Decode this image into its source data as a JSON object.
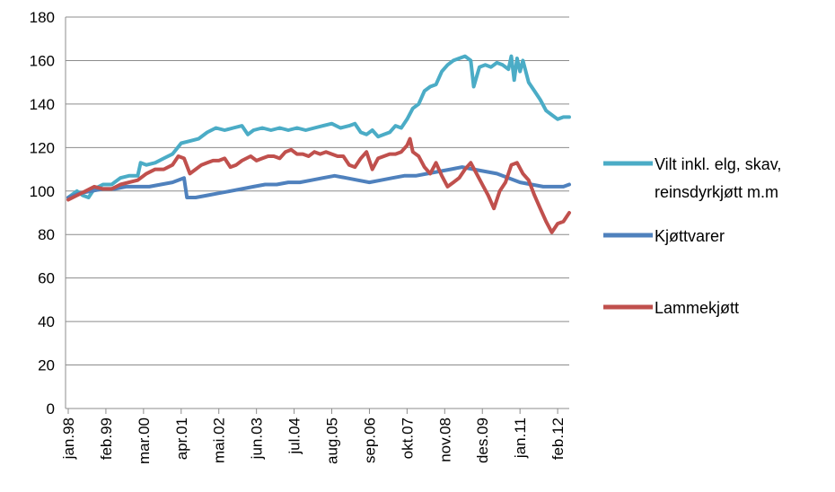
{
  "chart_data": {
    "type": "line",
    "title": "",
    "xlabel": "",
    "ylabel": "",
    "ylim": [
      0,
      180
    ],
    "yticks": [
      0,
      20,
      40,
      60,
      80,
      100,
      120,
      140,
      160,
      180
    ],
    "x_tick_labels": [
      "jan.98",
      "feb.99",
      "mar.00",
      "apr.01",
      "mai.02",
      "jun.03",
      "jul.04",
      "aug.05",
      "sep.06",
      "okt.07",
      "nov.08",
      "des.09",
      "jan.11",
      "feb.12"
    ],
    "x_tick_month_index": [
      0,
      13,
      26,
      39,
      52,
      65,
      78,
      91,
      104,
      117,
      130,
      143,
      156,
      169
    ],
    "x_range_month_index": [
      0,
      173
    ],
    "grid": "horizontal",
    "legend_position": "right",
    "series": [
      {
        "name": "Vilt inkl. elg, skav, reinsdyrkjøtt m.m",
        "legend_lines": [
          "Vilt inkl. elg, skav,",
          "reinsdyrkjøtt m.m"
        ],
        "color": "#4bacc6",
        "points": [
          [
            0,
            97
          ],
          [
            3,
            100
          ],
          [
            5,
            98
          ],
          [
            7,
            97
          ],
          [
            9,
            101
          ],
          [
            12,
            103
          ],
          [
            15,
            103
          ],
          [
            18,
            106
          ],
          [
            21,
            107
          ],
          [
            24,
            107
          ],
          [
            25,
            113
          ],
          [
            27,
            112
          ],
          [
            30,
            113
          ],
          [
            33,
            115
          ],
          [
            36,
            117
          ],
          [
            39,
            122
          ],
          [
            42,
            123
          ],
          [
            45,
            124
          ],
          [
            48,
            127
          ],
          [
            51,
            129
          ],
          [
            54,
            128
          ],
          [
            57,
            129
          ],
          [
            60,
            130
          ],
          [
            62,
            126
          ],
          [
            64,
            128
          ],
          [
            67,
            129
          ],
          [
            70,
            128
          ],
          [
            73,
            129
          ],
          [
            76,
            128
          ],
          [
            79,
            129
          ],
          [
            82,
            128
          ],
          [
            85,
            129
          ],
          [
            88,
            130
          ],
          [
            91,
            131
          ],
          [
            94,
            129
          ],
          [
            97,
            130
          ],
          [
            99,
            131
          ],
          [
            101,
            127
          ],
          [
            103,
            126
          ],
          [
            105,
            128
          ],
          [
            107,
            125
          ],
          [
            109,
            126
          ],
          [
            111,
            127
          ],
          [
            113,
            130
          ],
          [
            115,
            129
          ],
          [
            117,
            133
          ],
          [
            119,
            138
          ],
          [
            121,
            140
          ],
          [
            123,
            146
          ],
          [
            125,
            148
          ],
          [
            127,
            149
          ],
          [
            129,
            155
          ],
          [
            131,
            158
          ],
          [
            133,
            160
          ],
          [
            135,
            161
          ],
          [
            137,
            162
          ],
          [
            139,
            160
          ],
          [
            140,
            148
          ],
          [
            142,
            157
          ],
          [
            144,
            158
          ],
          [
            146,
            157
          ],
          [
            148,
            159
          ],
          [
            150,
            158
          ],
          [
            152,
            156
          ],
          [
            153,
            162
          ],
          [
            154,
            151
          ],
          [
            155,
            161
          ],
          [
            156,
            155
          ],
          [
            157,
            160
          ],
          [
            159,
            150
          ],
          [
            161,
            146
          ],
          [
            163,
            142
          ],
          [
            165,
            137
          ],
          [
            167,
            135
          ],
          [
            169,
            133
          ],
          [
            171,
            134
          ],
          [
            173,
            134
          ]
        ]
      },
      {
        "name": "Kjøttvarer",
        "legend_lines": [
          "Kjøttvarer"
        ],
        "color": "#4f81bd",
        "points": [
          [
            0,
            97
          ],
          [
            4,
            99
          ],
          [
            8,
            100
          ],
          [
            12,
            101
          ],
          [
            16,
            101
          ],
          [
            20,
            102
          ],
          [
            24,
            102
          ],
          [
            28,
            102
          ],
          [
            32,
            103
          ],
          [
            36,
            104
          ],
          [
            40,
            106
          ],
          [
            41,
            97
          ],
          [
            44,
            97
          ],
          [
            48,
            98
          ],
          [
            52,
            99
          ],
          [
            56,
            100
          ],
          [
            60,
            101
          ],
          [
            64,
            102
          ],
          [
            68,
            103
          ],
          [
            72,
            103
          ],
          [
            76,
            104
          ],
          [
            80,
            104
          ],
          [
            84,
            105
          ],
          [
            88,
            106
          ],
          [
            92,
            107
          ],
          [
            96,
            106
          ],
          [
            100,
            105
          ],
          [
            104,
            104
          ],
          [
            108,
            105
          ],
          [
            112,
            106
          ],
          [
            116,
            107
          ],
          [
            120,
            107
          ],
          [
            124,
            108
          ],
          [
            128,
            109
          ],
          [
            132,
            110
          ],
          [
            136,
            111
          ],
          [
            140,
            110
          ],
          [
            144,
            109
          ],
          [
            148,
            108
          ],
          [
            152,
            106
          ],
          [
            156,
            104
          ],
          [
            160,
            103
          ],
          [
            164,
            102
          ],
          [
            168,
            102
          ],
          [
            171,
            102
          ],
          [
            173,
            103
          ]
        ]
      },
      {
        "name": "Lammekjøtt",
        "legend_lines": [
          "Lammekjøtt"
        ],
        "color": "#c0504d",
        "points": [
          [
            0,
            96
          ],
          [
            3,
            98
          ],
          [
            6,
            100
          ],
          [
            9,
            102
          ],
          [
            12,
            101
          ],
          [
            15,
            101
          ],
          [
            18,
            103
          ],
          [
            21,
            104
          ],
          [
            24,
            105
          ],
          [
            27,
            108
          ],
          [
            30,
            110
          ],
          [
            33,
            110
          ],
          [
            36,
            112
          ],
          [
            38,
            116
          ],
          [
            40,
            115
          ],
          [
            42,
            108
          ],
          [
            44,
            110
          ],
          [
            46,
            112
          ],
          [
            48,
            113
          ],
          [
            50,
            114
          ],
          [
            52,
            114
          ],
          [
            54,
            115
          ],
          [
            56,
            111
          ],
          [
            58,
            112
          ],
          [
            60,
            114
          ],
          [
            63,
            116
          ],
          [
            65,
            114
          ],
          [
            67,
            115
          ],
          [
            69,
            116
          ],
          [
            71,
            116
          ],
          [
            73,
            115
          ],
          [
            75,
            118
          ],
          [
            77,
            119
          ],
          [
            79,
            117
          ],
          [
            81,
            117
          ],
          [
            83,
            116
          ],
          [
            85,
            118
          ],
          [
            87,
            117
          ],
          [
            89,
            118
          ],
          [
            91,
            117
          ],
          [
            93,
            116
          ],
          [
            95,
            116
          ],
          [
            97,
            112
          ],
          [
            99,
            111
          ],
          [
            101,
            115
          ],
          [
            103,
            118
          ],
          [
            105,
            110
          ],
          [
            107,
            115
          ],
          [
            109,
            116
          ],
          [
            111,
            117
          ],
          [
            113,
            117
          ],
          [
            115,
            118
          ],
          [
            117,
            121
          ],
          [
            118,
            124
          ],
          [
            119,
            118
          ],
          [
            121,
            116
          ],
          [
            123,
            111
          ],
          [
            125,
            108
          ],
          [
            127,
            113
          ],
          [
            129,
            107
          ],
          [
            131,
            102
          ],
          [
            133,
            104
          ],
          [
            135,
            106
          ],
          [
            137,
            110
          ],
          [
            139,
            113
          ],
          [
            141,
            108
          ],
          [
            143,
            103
          ],
          [
            145,
            98
          ],
          [
            147,
            92
          ],
          [
            149,
            100
          ],
          [
            151,
            104
          ],
          [
            153,
            112
          ],
          [
            155,
            113
          ],
          [
            157,
            108
          ],
          [
            159,
            105
          ],
          [
            161,
            98
          ],
          [
            163,
            92
          ],
          [
            165,
            86
          ],
          [
            167,
            81
          ],
          [
            169,
            85
          ],
          [
            171,
            86
          ],
          [
            173,
            90
          ]
        ]
      }
    ]
  }
}
